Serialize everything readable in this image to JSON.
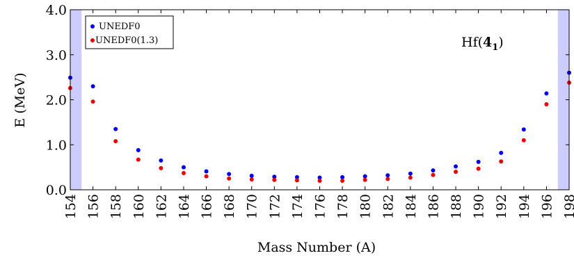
{
  "chart_data": {
    "type": "scatter",
    "title": "",
    "xlabel": "Mass Number (A)",
    "ylabel": "E (MeV)",
    "xlim": [
      154,
      198
    ],
    "ylim": [
      0,
      4
    ],
    "x_ticks": [
      154,
      156,
      158,
      160,
      162,
      164,
      166,
      168,
      170,
      172,
      174,
      176,
      178,
      180,
      182,
      184,
      186,
      188,
      190,
      192,
      194,
      196,
      198
    ],
    "y_ticks": [
      0,
      1,
      2,
      3,
      4
    ],
    "y_tick_labels": [
      "0.0",
      "1.0",
      "2.0",
      "3.0",
      "4.0"
    ],
    "shaded_regions": [
      [
        154,
        155
      ],
      [
        197,
        198
      ]
    ],
    "shade_color": "#ccccff",
    "grid": false,
    "legend_position": "top-left",
    "annotation": {
      "prefix": "Hf(",
      "bold": "4",
      "subscript": "1",
      "suffix": ")"
    },
    "x": [
      154,
      156,
      158,
      160,
      162,
      164,
      166,
      168,
      170,
      172,
      174,
      176,
      178,
      180,
      182,
      184,
      186,
      188,
      190,
      192,
      194,
      196,
      198
    ],
    "series": [
      {
        "name": "UNEDF0",
        "color": "#0000ee",
        "values": [
          2.49,
          2.3,
          1.35,
          0.88,
          0.65,
          0.5,
          0.41,
          0.35,
          0.31,
          0.29,
          0.28,
          0.27,
          0.28,
          0.3,
          0.32,
          0.36,
          0.43,
          0.52,
          0.62,
          0.82,
          1.34,
          2.14,
          2.6
        ]
      },
      {
        "name": "UNEDF0(1.3)",
        "color": "#ee0000",
        "values": [
          2.26,
          1.96,
          1.08,
          0.67,
          0.48,
          0.37,
          0.3,
          0.25,
          0.23,
          0.22,
          0.21,
          0.2,
          0.2,
          0.22,
          0.24,
          0.27,
          0.33,
          0.4,
          0.47,
          0.63,
          1.1,
          1.9,
          2.38
        ]
      }
    ]
  }
}
